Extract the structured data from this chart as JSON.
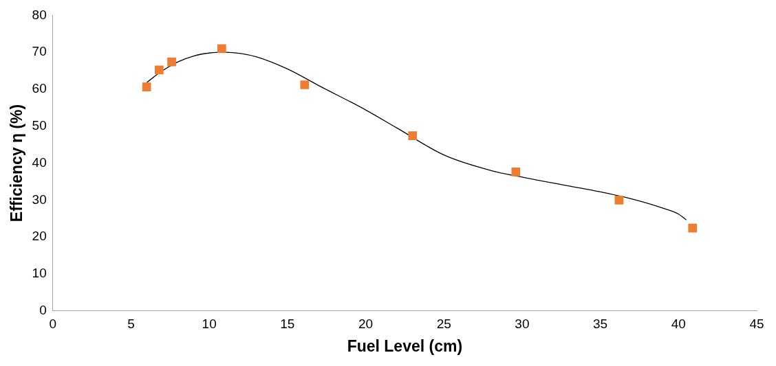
{
  "chart_data": {
    "type": "scatter",
    "xlabel": "Fuel Level (cm)",
    "ylabel": "Efficiency η (%)",
    "xlim": [
      0,
      45
    ],
    "xticks": [
      0,
      5,
      10,
      15,
      20,
      25,
      30,
      35,
      40,
      45
    ],
    "ylim": [
      0,
      80
    ],
    "yticks": [
      0,
      10,
      20,
      30,
      40,
      50,
      60,
      70,
      80
    ],
    "grid": false,
    "legend": false,
    "marker": "square",
    "series": [
      {
        "type": "scatter",
        "color": "#ed7d31",
        "x": [
          6.0,
          6.8,
          7.6,
          10.8,
          16.1,
          23.0,
          29.6,
          36.2,
          40.9
        ],
        "values": [
          60.6,
          65.2,
          67.4,
          71,
          61.2,
          47.4,
          37.6,
          30,
          22.4
        ]
      },
      {
        "type": "line",
        "color": "#000000",
        "marker": "none",
        "line_style": "solid",
        "x": [
          6.0,
          7,
          8,
          9,
          10,
          11,
          12,
          13,
          15,
          17,
          20,
          22,
          25,
          28,
          30,
          33,
          35,
          37,
          39,
          40,
          40.5
        ],
        "values": [
          61.8,
          65,
          67.4,
          69,
          69.8,
          70,
          69.7,
          68.8,
          65.5,
          61,
          54.4,
          49.5,
          42.2,
          38,
          36.2,
          33.8,
          32.2,
          30.3,
          27.8,
          26.2,
          24.6
        ]
      }
    ]
  }
}
